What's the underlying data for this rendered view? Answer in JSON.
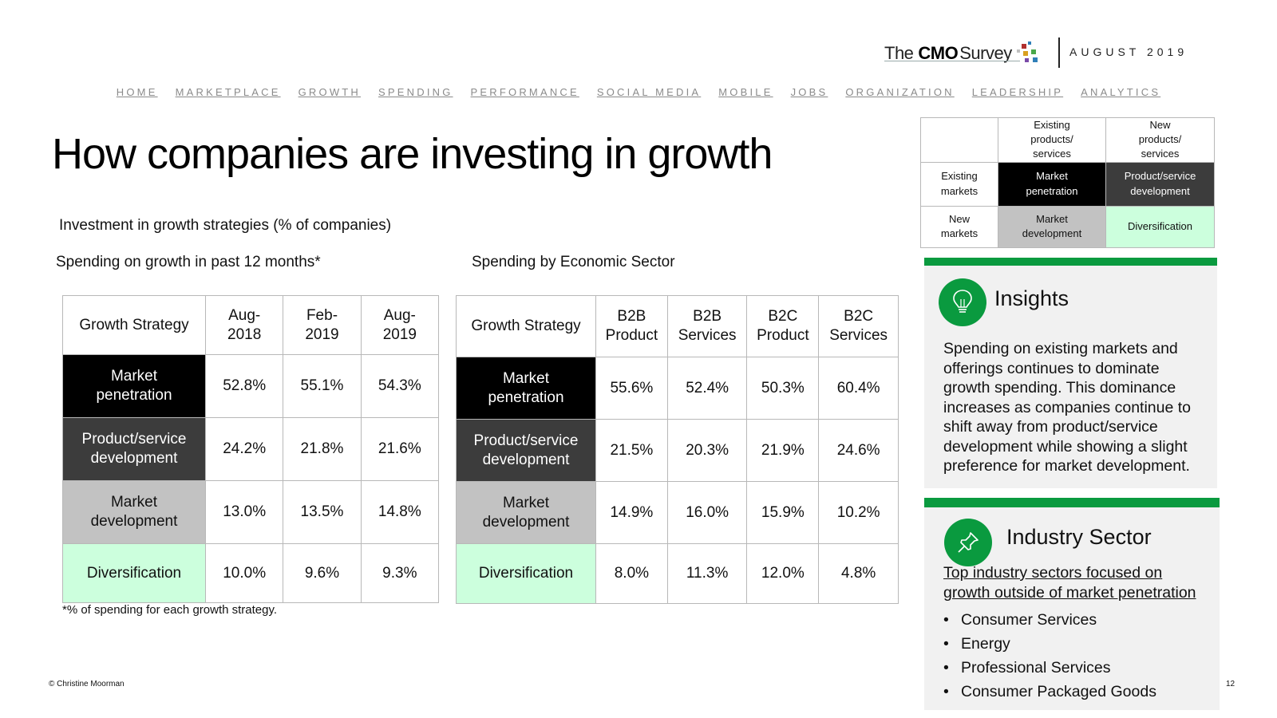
{
  "header": {
    "logo_the": "The",
    "logo_cmo": "CMO",
    "logo_survey": "Survey",
    "date": "AUGUST 2019",
    "dot_colors": [
      "#b03030",
      "#2f7fb8",
      "#4aa84a",
      "#d9a020",
      "#7a4aa8",
      "#c0c0c0"
    ]
  },
  "nav": [
    "HOME",
    "MARKETPLACE",
    "GROWTH",
    "SPENDING",
    "PERFORMANCE",
    "SOCIAL MEDIA",
    "MOBILE",
    "JOBS",
    "ORGANIZATION",
    "LEADERSHIP",
    "ANALYTICS"
  ],
  "title": "How companies are investing in growth",
  "subtitle": "Investment in growth strategies (% of companies)",
  "table1": {
    "caption": "Spending on growth in past 12 months*",
    "headers": [
      "Growth Strategy",
      "Aug-\n2018",
      "Feb-\n2019",
      "Aug-\n2019"
    ],
    "rows": [
      {
        "label": "Market penetration",
        "values": [
          "52.8%",
          "55.1%",
          "54.3%"
        ]
      },
      {
        "label": "Product/service development",
        "values": [
          "24.2%",
          "21.8%",
          "21.6%"
        ]
      },
      {
        "label": "Market development",
        "values": [
          "13.0%",
          "13.5%",
          "14.8%"
        ]
      },
      {
        "label": "Diversification",
        "values": [
          "10.0%",
          "9.6%",
          "9.3%"
        ]
      }
    ],
    "footnote": "*% of spending for each growth strategy."
  },
  "table2": {
    "caption": "Spending by Economic Sector",
    "headers": [
      "Growth Strategy",
      "B2B\nProduct",
      "B2B\nServices",
      "B2C\nProduct",
      "B2C\nServices"
    ],
    "rows": [
      {
        "label": "Market penetration",
        "values": [
          "55.6%",
          "52.4%",
          "50.3%",
          "60.4%"
        ]
      },
      {
        "label": "Product/service development",
        "values": [
          "21.5%",
          "20.3%",
          "21.9%",
          "24.6%"
        ]
      },
      {
        "label": "Market development",
        "values": [
          "14.9%",
          "16.0%",
          "15.9%",
          "10.2%"
        ]
      },
      {
        "label": "Diversification",
        "values": [
          "8.0%",
          "11.3%",
          "12.0%",
          "4.8%"
        ]
      }
    ]
  },
  "matrix": {
    "col_headers": [
      "Existing\nproducts/\nservices",
      "New\nproducts/\nservices"
    ],
    "row_headers": [
      "Existing\nmarkets",
      "New\nmarkets"
    ],
    "cells": [
      [
        "Market\npenetration",
        "Product/service\ndevelopment"
      ],
      [
        "Market\ndevelopment",
        "Diversification"
      ]
    ]
  },
  "insights": {
    "heading": "Insights",
    "text": "Spending on existing markets and offerings continues to dominate growth spending. This dominance increases as companies continue to shift away from product/service development while showing a slight preference for market development."
  },
  "industry": {
    "heading": "Industry Sector",
    "link": "Top industry sectors focused on growth outside of market penetration",
    "items": [
      "Consumer Services",
      "Energy",
      "Professional Services",
      "Consumer Packaged Goods"
    ]
  },
  "footer": {
    "copyright": "© Christine Moorman",
    "page_number": "12"
  },
  "colors": {
    "market_penetration": "#000000",
    "product_service_development": "#3c3c3c",
    "market_development": "#c2c2c2",
    "diversification": "#ccffdd",
    "accent_green": "#0a9a3f"
  }
}
